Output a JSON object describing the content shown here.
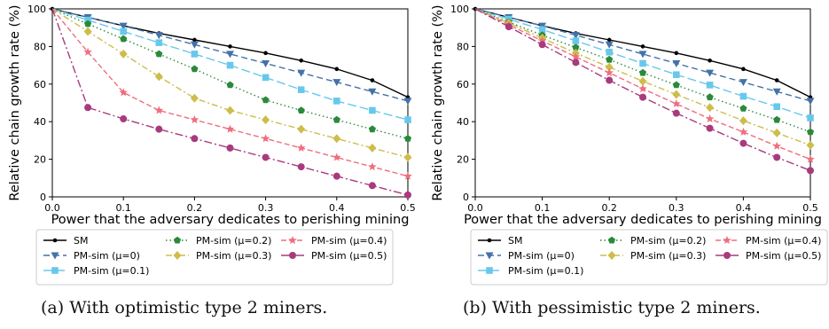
{
  "captions": [
    "(a) With optimistic type 2 miners.",
    "(b) With pessimistic type 2 miners."
  ],
  "chart_data": [
    {
      "type": "line",
      "title": "",
      "xlabel": "Power that the adversary dedicates to perishing mining",
      "ylabel": "Relative chain growth rate (%)",
      "xlim": [
        0,
        0.5
      ],
      "ylim": [
        0,
        100
      ],
      "xticks": [
        0.0,
        0.1,
        0.2,
        0.3,
        0.4,
        0.5
      ],
      "yticks": [
        0,
        20,
        40,
        60,
        80,
        100
      ],
      "x": [
        0,
        0.05,
        0.1,
        0.15,
        0.2,
        0.25,
        0.3,
        0.35,
        0.4,
        0.45,
        0.5
      ],
      "grid": false,
      "legend_position": "below",
      "series": [
        {
          "name": "SM",
          "color": "#000000",
          "dash": "",
          "marker": "dot",
          "values": [
            100,
            95.5,
            91,
            87,
            83.5,
            80,
            76.5,
            72.5,
            68,
            62,
            53
          ]
        },
        {
          "name": "PM-sim (μ=0)",
          "color": "#4472a8",
          "dash": "7 4",
          "marker": "triangle-down",
          "values": [
            100,
            95.5,
            91,
            86,
            81,
            76,
            71,
            66,
            61,
            56,
            51
          ]
        },
        {
          "name": "PM-sim (μ=0.1)",
          "color": "#68c8ec",
          "dash": "10 4",
          "marker": "square",
          "values": [
            100,
            94,
            88,
            82,
            76,
            70,
            63.5,
            57,
            51,
            46,
            41
          ]
        },
        {
          "name": "PM-sim (μ=0.2)",
          "color": "#2a8a3a",
          "dash": "1.5 3",
          "marker": "pentagon",
          "values": [
            100,
            92,
            84,
            76,
            68,
            59.5,
            51.5,
            46,
            41,
            36,
            31
          ]
        },
        {
          "name": "PM-sim (μ=0.3)",
          "color": "#cdbd4a",
          "dash": "7 3 2 3",
          "marker": "diamond",
          "values": [
            100,
            88,
            76,
            64,
            52.5,
            46,
            41,
            36,
            31,
            26,
            21
          ]
        },
        {
          "name": "PM-sim (μ=0.4)",
          "color": "#ef6e7e",
          "dash": "6 3",
          "marker": "star",
          "values": [
            100,
            77,
            55.5,
            46,
            41,
            36,
            31,
            26,
            21,
            16,
            11
          ]
        },
        {
          "name": "PM-sim (μ=0.5)",
          "color": "#a83a7e",
          "dash": "9 3 2 3",
          "marker": "circle",
          "values": [
            100,
            47.5,
            41.5,
            36,
            31,
            26,
            21,
            16,
            11,
            6,
            1
          ]
        }
      ]
    },
    {
      "type": "line",
      "title": "",
      "xlabel": "Power that the adversary dedicates to perishing mining",
      "ylabel": "Relative chain growth rate (%)",
      "xlim": [
        0,
        0.5
      ],
      "ylim": [
        0,
        100
      ],
      "xticks": [
        0.0,
        0.1,
        0.2,
        0.3,
        0.4,
        0.5
      ],
      "yticks": [
        0,
        20,
        40,
        60,
        80,
        100
      ],
      "x": [
        0,
        0.05,
        0.1,
        0.15,
        0.2,
        0.25,
        0.3,
        0.35,
        0.4,
        0.45,
        0.5
      ],
      "grid": false,
      "legend_position": "below",
      "series": [
        {
          "name": "SM",
          "color": "#000000",
          "dash": "",
          "marker": "dot",
          "values": [
            100,
            95.5,
            91,
            87,
            83.5,
            80,
            76.5,
            72.5,
            68,
            62,
            53
          ]
        },
        {
          "name": "PM-sim (μ=0)",
          "color": "#4472a8",
          "dash": "7 4",
          "marker": "triangle-down",
          "values": [
            100,
            95.5,
            91,
            86,
            81,
            76,
            71,
            66,
            61,
            56,
            51
          ]
        },
        {
          "name": "PM-sim (μ=0.1)",
          "color": "#68c8ec",
          "dash": "10 4",
          "marker": "square",
          "values": [
            100,
            94.5,
            89,
            83,
            77,
            71,
            65,
            59.5,
            53.5,
            48,
            42
          ]
        },
        {
          "name": "PM-sim (μ=0.2)",
          "color": "#2a8a3a",
          "dash": "1.5 3",
          "marker": "pentagon",
          "values": [
            100,
            93,
            86,
            79.5,
            73,
            66,
            59.5,
            53,
            47,
            41,
            34.5
          ]
        },
        {
          "name": "PM-sim (μ=0.3)",
          "color": "#cdbd4a",
          "dash": "7 3 2 3",
          "marker": "diamond",
          "values": [
            100,
            92.5,
            84.5,
            76.5,
            69,
            61.5,
            54.5,
            47.5,
            40.5,
            34,
            27.5
          ]
        },
        {
          "name": "PM-sim (μ=0.4)",
          "color": "#ef6e7e",
          "dash": "6 3",
          "marker": "star",
          "values": [
            100,
            91.5,
            83,
            74.5,
            66,
            57.5,
            49.5,
            41.5,
            34.5,
            27,
            20
          ]
        },
        {
          "name": "PM-sim (μ=0.5)",
          "color": "#a83a7e",
          "dash": "9 3 2 3",
          "marker": "circle",
          "values": [
            100,
            90.5,
            81,
            71.5,
            62,
            53,
            44.5,
            36.5,
            28.5,
            21,
            14
          ]
        }
      ]
    }
  ]
}
